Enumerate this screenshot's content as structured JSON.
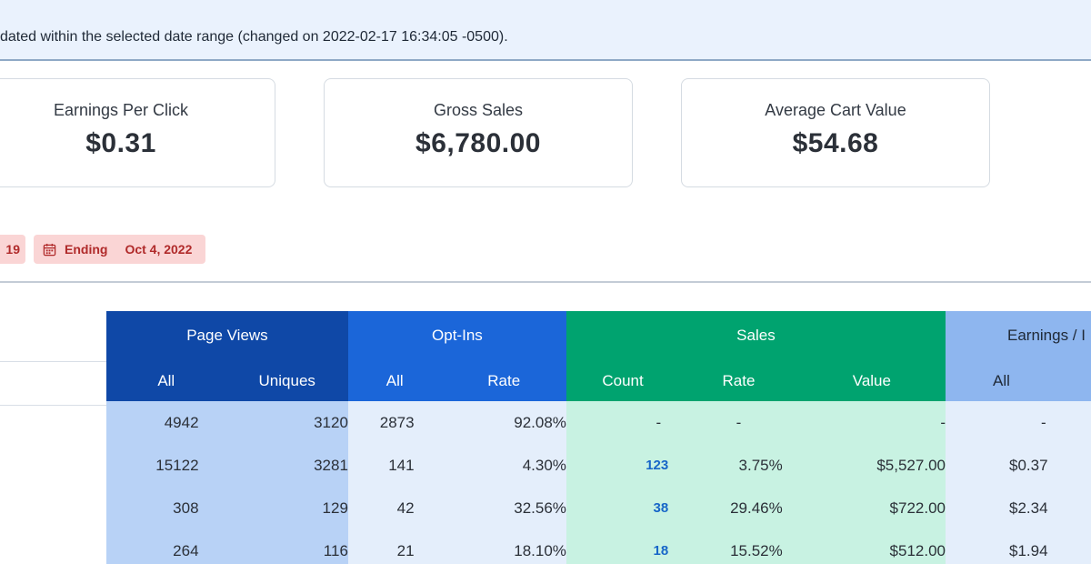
{
  "notice": {
    "text": "dated within the selected date range (changed on 2022-02-17 16:34:05 -0500)."
  },
  "cards": [
    {
      "label": "Earnings Per Click",
      "value": "$0.31"
    },
    {
      "label": "Gross Sales",
      "value": "$6,780.00"
    },
    {
      "label": "Average Cart Value",
      "value": "$54.68"
    }
  ],
  "filters": {
    "start_fragment": "19",
    "ending_label": "Ending",
    "ending_date": "Oct 4, 2022",
    "icon": "calendar-icon",
    "color": "#b02a2a"
  },
  "table": {
    "groups": [
      "Page Views",
      "Opt-Ins",
      "Sales",
      "Earnings / I"
    ],
    "columns": [
      "All",
      "Uniques",
      "All",
      "Rate",
      "Count",
      "Rate",
      "Value",
      "All"
    ],
    "rows": [
      [
        "4942",
        "3120",
        "2873",
        "92.08%",
        "-",
        "-",
        "-",
        "-"
      ],
      [
        "15122",
        "3281",
        "141",
        "4.30%",
        "123",
        "3.75%",
        "$5,527.00",
        "$0.37"
      ],
      [
        "308",
        "129",
        "42",
        "32.56%",
        "38",
        "29.46%",
        "$722.00",
        "$2.34"
      ],
      [
        "264",
        "116",
        "21",
        "18.10%",
        "18",
        "15.52%",
        "$512.00",
        "$1.94"
      ]
    ],
    "colors": {
      "page_views": "#0f48a7",
      "opt_ins": "#1b66d9",
      "sales": "#00a36f",
      "earnings": "#8eb6ef"
    }
  }
}
